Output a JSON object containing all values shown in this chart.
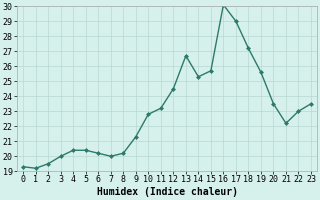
{
  "x": [
    0,
    1,
    2,
    3,
    4,
    5,
    6,
    7,
    8,
    9,
    10,
    11,
    12,
    13,
    14,
    15,
    16,
    17,
    18,
    19,
    20,
    21,
    22,
    23
  ],
  "y": [
    19.3,
    19.2,
    19.5,
    20.0,
    20.4,
    20.4,
    20.2,
    20.0,
    20.2,
    21.3,
    22.8,
    23.2,
    24.5,
    26.7,
    25.3,
    25.7,
    30.1,
    29.0,
    27.2,
    25.6,
    23.5,
    22.2,
    23.0,
    23.5
  ],
  "line_color": "#2d7a6a",
  "marker": "D",
  "markersize": 2.0,
  "linewidth": 1.0,
  "xlabel": "Humidex (Indice chaleur)",
  "xlabel_fontsize": 7,
  "ylim": [
    19,
    30
  ],
  "yticks": [
    19,
    20,
    21,
    22,
    23,
    24,
    25,
    26,
    27,
    28,
    29,
    30
  ],
  "xticks": [
    0,
    1,
    2,
    3,
    4,
    5,
    6,
    7,
    8,
    9,
    10,
    11,
    12,
    13,
    14,
    15,
    16,
    17,
    18,
    19,
    20,
    21,
    22,
    23
  ],
  "tick_fontsize": 6,
  "bg_color": "#d6f0ec",
  "grid_color": "#b8d8d2",
  "fig_bg_color": "#d6f0ec",
  "spine_color": "#aaaaaa"
}
